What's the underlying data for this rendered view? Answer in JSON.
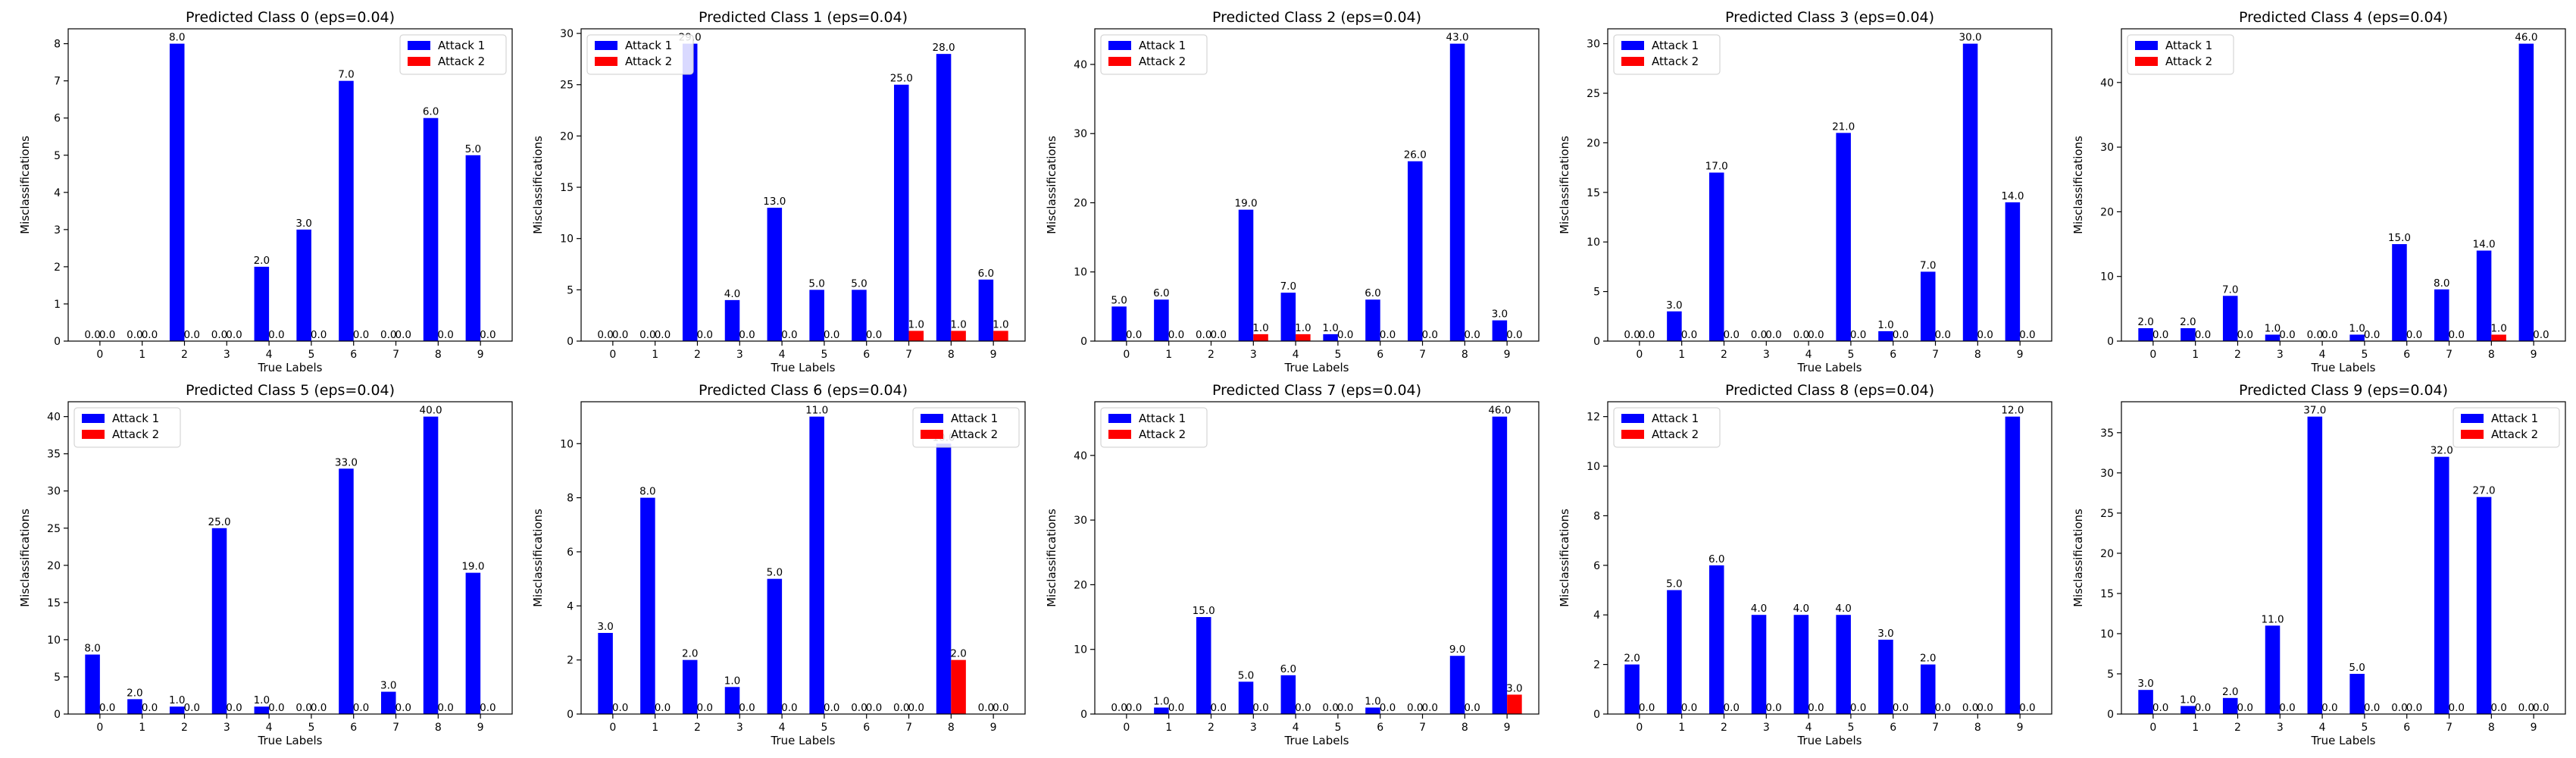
{
  "figure": {
    "panels": [
      {
        "title": "Predicted Class 0 (eps=0.04)",
        "xlabel": "True Labels",
        "ylabel": "Misclassifications"
      },
      {
        "title": "Predicted Class 1 (eps=0.04)",
        "xlabel": "True Labels",
        "ylabel": "Misclassifications"
      },
      {
        "title": "Predicted Class 2 (eps=0.04)",
        "xlabel": "True Labels",
        "ylabel": "Misclassifications"
      },
      {
        "title": "Predicted Class 3 (eps=0.04)",
        "xlabel": "True Labels",
        "ylabel": "Misclassifications"
      },
      {
        "title": "Predicted Class 4 (eps=0.04)",
        "xlabel": "True Labels",
        "ylabel": "Misclassifications"
      },
      {
        "title": "Predicted Class 5 (eps=0.04)",
        "xlabel": "True Labels",
        "ylabel": "Misclassifications"
      },
      {
        "title": "Predicted Class 6 (eps=0.04)",
        "xlabel": "True Labels",
        "ylabel": "Misclassifications"
      },
      {
        "title": "Predicted Class 7 (eps=0.04)",
        "xlabel": "True Labels",
        "ylabel": "Misclassifications"
      },
      {
        "title": "Predicted Class 8 (eps=0.04)",
        "xlabel": "True Labels",
        "ylabel": "Misclassifications"
      },
      {
        "title": "Predicted Class 9 (eps=0.04)",
        "xlabel": "True Labels",
        "ylabel": "Misclassifications"
      }
    ]
  },
  "chart_data": [
    {
      "type": "bar",
      "title": "Predicted Class 0 (eps=0.04)",
      "xlabel": "True Labels",
      "ylabel": "Misclassifications",
      "categories": [
        "0",
        "1",
        "2",
        "3",
        "4",
        "5",
        "6",
        "7",
        "8",
        "9"
      ],
      "ylim": [
        0,
        8.4
      ],
      "yticks": [
        0,
        1,
        2,
        3,
        4,
        5,
        6,
        7,
        8
      ],
      "legend": "top-right",
      "grid": false,
      "series": [
        {
          "name": "Attack 1",
          "color": "#0000ff",
          "values": [
            0,
            0,
            8,
            0,
            2,
            3,
            7,
            0,
            6,
            5
          ]
        },
        {
          "name": "Attack 2",
          "color": "#ff0000",
          "values": [
            0,
            0,
            0,
            0,
            0,
            0,
            0,
            0,
            0,
            0
          ]
        }
      ]
    },
    {
      "type": "bar",
      "title": "Predicted Class 1 (eps=0.04)",
      "xlabel": "True Labels",
      "ylabel": "Misclassifications",
      "categories": [
        "0",
        "1",
        "2",
        "3",
        "4",
        "5",
        "6",
        "7",
        "8",
        "9"
      ],
      "ylim": [
        0,
        30.45
      ],
      "yticks": [
        0,
        5,
        10,
        15,
        20,
        25,
        30
      ],
      "legend": "top-left",
      "grid": false,
      "series": [
        {
          "name": "Attack 1",
          "color": "#0000ff",
          "values": [
            0,
            0,
            29,
            4,
            13,
            5,
            5,
            25,
            28,
            6
          ]
        },
        {
          "name": "Attack 2",
          "color": "#ff0000",
          "values": [
            0,
            0,
            0,
            0,
            0,
            0,
            0,
            1,
            1,
            1
          ]
        }
      ]
    },
    {
      "type": "bar",
      "title": "Predicted Class 2 (eps=0.04)",
      "xlabel": "True Labels",
      "ylabel": "Misclassifications",
      "categories": [
        "0",
        "1",
        "2",
        "3",
        "4",
        "5",
        "6",
        "7",
        "8",
        "9"
      ],
      "ylim": [
        0,
        45.15
      ],
      "yticks": [
        0,
        10,
        20,
        30,
        40
      ],
      "legend": "top-left",
      "grid": false,
      "series": [
        {
          "name": "Attack 1",
          "color": "#0000ff",
          "values": [
            5,
            6,
            0,
            19,
            7,
            1,
            6,
            26,
            43,
            3
          ]
        },
        {
          "name": "Attack 2",
          "color": "#ff0000",
          "values": [
            0,
            0,
            0,
            1,
            1,
            0,
            0,
            0,
            0,
            0
          ]
        }
      ]
    },
    {
      "type": "bar",
      "title": "Predicted Class 3 (eps=0.04)",
      "xlabel": "True Labels",
      "ylabel": "Misclassifications",
      "categories": [
        "0",
        "1",
        "2",
        "3",
        "4",
        "5",
        "6",
        "7",
        "8",
        "9"
      ],
      "ylim": [
        0,
        31.5
      ],
      "yticks": [
        0,
        5,
        10,
        15,
        20,
        25,
        30
      ],
      "legend": "top-left",
      "grid": false,
      "series": [
        {
          "name": "Attack 1",
          "color": "#0000ff",
          "values": [
            0,
            3,
            17,
            0,
            0,
            21,
            1,
            7,
            30,
            14
          ]
        },
        {
          "name": "Attack 2",
          "color": "#ff0000",
          "values": [
            0,
            0,
            0,
            0,
            0,
            0,
            0,
            0,
            0,
            0
          ]
        }
      ]
    },
    {
      "type": "bar",
      "title": "Predicted Class 4 (eps=0.04)",
      "xlabel": "True Labels",
      "ylabel": "Misclassifications",
      "categories": [
        "0",
        "1",
        "2",
        "3",
        "4",
        "5",
        "6",
        "7",
        "8",
        "9"
      ],
      "ylim": [
        0,
        48.3
      ],
      "yticks": [
        0,
        10,
        20,
        30,
        40
      ],
      "legend": "top-left",
      "grid": false,
      "series": [
        {
          "name": "Attack 1",
          "color": "#0000ff",
          "values": [
            2,
            2,
            7,
            1,
            0,
            1,
            15,
            8,
            14,
            46
          ]
        },
        {
          "name": "Attack 2",
          "color": "#ff0000",
          "values": [
            0,
            0,
            0,
            0,
            0,
            0,
            0,
            0,
            1,
            0
          ]
        }
      ]
    },
    {
      "type": "bar",
      "title": "Predicted Class 5 (eps=0.04)",
      "xlabel": "True Labels",
      "ylabel": "Misclassifications",
      "categories": [
        "0",
        "1",
        "2",
        "3",
        "4",
        "5",
        "6",
        "7",
        "8",
        "9"
      ],
      "ylim": [
        0,
        42
      ],
      "yticks": [
        0,
        5,
        10,
        15,
        20,
        25,
        30,
        35,
        40
      ],
      "legend": "top-left",
      "grid": false,
      "series": [
        {
          "name": "Attack 1",
          "color": "#0000ff",
          "values": [
            8,
            2,
            1,
            25,
            1,
            0,
            33,
            3,
            40,
            19
          ]
        },
        {
          "name": "Attack 2",
          "color": "#ff0000",
          "values": [
            0,
            0,
            0,
            0,
            0,
            0,
            0,
            0,
            0,
            0
          ]
        }
      ]
    },
    {
      "type": "bar",
      "title": "Predicted Class 6 (eps=0.04)",
      "xlabel": "True Labels",
      "ylabel": "Misclassifications",
      "categories": [
        "0",
        "1",
        "2",
        "3",
        "4",
        "5",
        "6",
        "7",
        "8",
        "9"
      ],
      "ylim": [
        0,
        11.55
      ],
      "yticks": [
        0,
        2,
        4,
        6,
        8,
        10
      ],
      "legend": "top-right",
      "grid": false,
      "series": [
        {
          "name": "Attack 1",
          "color": "#0000ff",
          "values": [
            3,
            8,
            2,
            1,
            5,
            11,
            0,
            0,
            10,
            0
          ]
        },
        {
          "name": "Attack 2",
          "color": "#ff0000",
          "values": [
            0,
            0,
            0,
            0,
            0,
            0,
            0,
            0,
            2,
            0
          ]
        }
      ]
    },
    {
      "type": "bar",
      "title": "Predicted Class 7 (eps=0.04)",
      "xlabel": "True Labels",
      "ylabel": "Misclassifications",
      "categories": [
        "0",
        "1",
        "2",
        "3",
        "4",
        "5",
        "6",
        "7",
        "8",
        "9"
      ],
      "ylim": [
        0,
        48.3
      ],
      "yticks": [
        0,
        10,
        20,
        30,
        40
      ],
      "legend": "top-left",
      "grid": false,
      "series": [
        {
          "name": "Attack 1",
          "color": "#0000ff",
          "values": [
            0,
            1,
            15,
            5,
            6,
            0,
            1,
            0,
            9,
            46
          ]
        },
        {
          "name": "Attack 2",
          "color": "#ff0000",
          "values": [
            0,
            0,
            0,
            0,
            0,
            0,
            0,
            0,
            0,
            3
          ]
        }
      ]
    },
    {
      "type": "bar",
      "title": "Predicted Class 8 (eps=0.04)",
      "xlabel": "True Labels",
      "ylabel": "Misclassifications",
      "categories": [
        "0",
        "1",
        "2",
        "3",
        "4",
        "5",
        "6",
        "7",
        "8",
        "9"
      ],
      "ylim": [
        0,
        12.6
      ],
      "yticks": [
        0,
        2,
        4,
        6,
        8,
        10,
        12
      ],
      "legend": "top-left",
      "grid": false,
      "series": [
        {
          "name": "Attack 1",
          "color": "#0000ff",
          "values": [
            2,
            5,
            6,
            4,
            4,
            4,
            3,
            2,
            0,
            12
          ]
        },
        {
          "name": "Attack 2",
          "color": "#ff0000",
          "values": [
            0,
            0,
            0,
            0,
            0,
            0,
            0,
            0,
            0,
            0
          ]
        }
      ]
    },
    {
      "type": "bar",
      "title": "Predicted Class 9 (eps=0.04)",
      "xlabel": "True Labels",
      "ylabel": "Misclassifications",
      "categories": [
        "0",
        "1",
        "2",
        "3",
        "4",
        "5",
        "6",
        "7",
        "8",
        "9"
      ],
      "ylim": [
        0,
        38.85
      ],
      "yticks": [
        0,
        5,
        10,
        15,
        20,
        25,
        30,
        35
      ],
      "legend": "top-right",
      "grid": false,
      "series": [
        {
          "name": "Attack 1",
          "color": "#0000ff",
          "values": [
            3,
            1,
            2,
            11,
            37,
            5,
            0,
            32,
            27,
            0
          ]
        },
        {
          "name": "Attack 2",
          "color": "#ff0000",
          "values": [
            0,
            0,
            0,
            0,
            0,
            0,
            0,
            0,
            0,
            0
          ]
        }
      ]
    }
  ]
}
